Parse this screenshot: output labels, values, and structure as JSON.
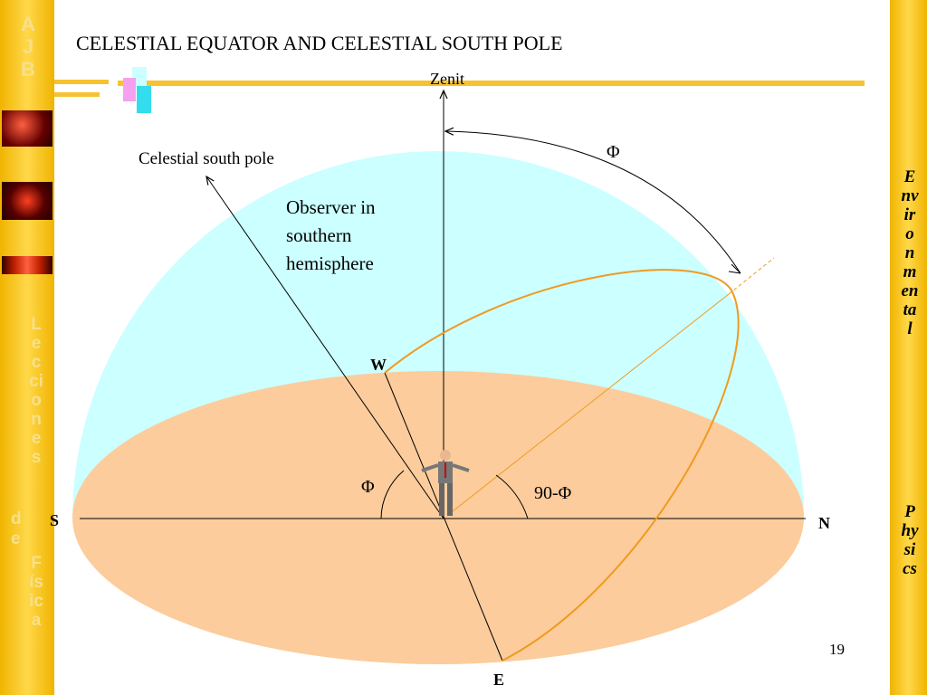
{
  "title": "CELESTIAL EQUATOR AND CELESTIAL SOUTH POLE",
  "left_sidebar": {
    "logo": "AJB",
    "course": "Lecciones",
    "connector": "de",
    "subject": "Física"
  },
  "right_sidebar": {
    "word1": "Environmental",
    "word2": "Physics"
  },
  "diagram": {
    "zenith": "Zenit",
    "phi_top": "Φ",
    "pole": "Celestial south pole",
    "observer": [
      "Observer in",
      "southern",
      "hemisphere"
    ],
    "west": "W",
    "south": "S",
    "north": "N",
    "east": "E",
    "phi_angle": "Φ",
    "complement": "90-Φ"
  },
  "page_number": "19"
}
